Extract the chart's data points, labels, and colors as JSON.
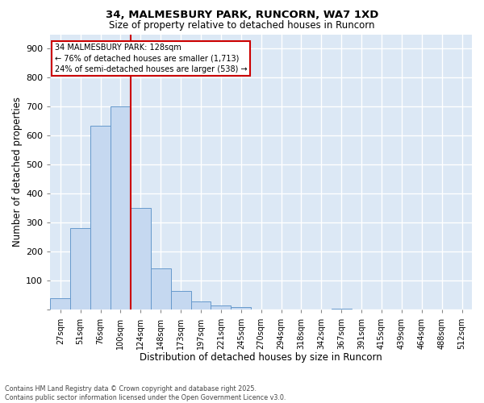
{
  "title1": "34, MALMESBURY PARK, RUNCORN, WA7 1XD",
  "title2": "Size of property relative to detached houses in Runcorn",
  "xlabel": "Distribution of detached houses by size in Runcorn",
  "ylabel": "Number of detached properties",
  "bin_labels": [
    "27sqm",
    "51sqm",
    "76sqm",
    "100sqm",
    "124sqm",
    "148sqm",
    "173sqm",
    "197sqm",
    "221sqm",
    "245sqm",
    "270sqm",
    "294sqm",
    "318sqm",
    "342sqm",
    "367sqm",
    "391sqm",
    "415sqm",
    "439sqm",
    "464sqm",
    "488sqm",
    "512sqm"
  ],
  "bar_values": [
    40,
    283,
    634,
    700,
    350,
    142,
    65,
    28,
    15,
    10,
    0,
    0,
    0,
    0,
    5,
    0,
    0,
    0,
    0,
    0,
    0
  ],
  "bar_color": "#c5d8f0",
  "bar_edge_color": "#6699cc",
  "vline_color": "#cc0000",
  "vline_pos": 3.5,
  "annotation_title": "34 MALMESBURY PARK: 128sqm",
  "annotation_line1": "← 76% of detached houses are smaller (1,713)",
  "annotation_line2": "24% of semi-detached houses are larger (538) →",
  "annotation_box_color": "#ffffff",
  "annotation_box_edge": "#cc0000",
  "ylim": [
    0,
    950
  ],
  "yticks": [
    0,
    100,
    200,
    300,
    400,
    500,
    600,
    700,
    800,
    900
  ],
  "background_color": "#dce8f5",
  "grid_color": "#ffffff",
  "footer": "Contains HM Land Registry data © Crown copyright and database right 2025.\nContains public sector information licensed under the Open Government Licence v3.0."
}
